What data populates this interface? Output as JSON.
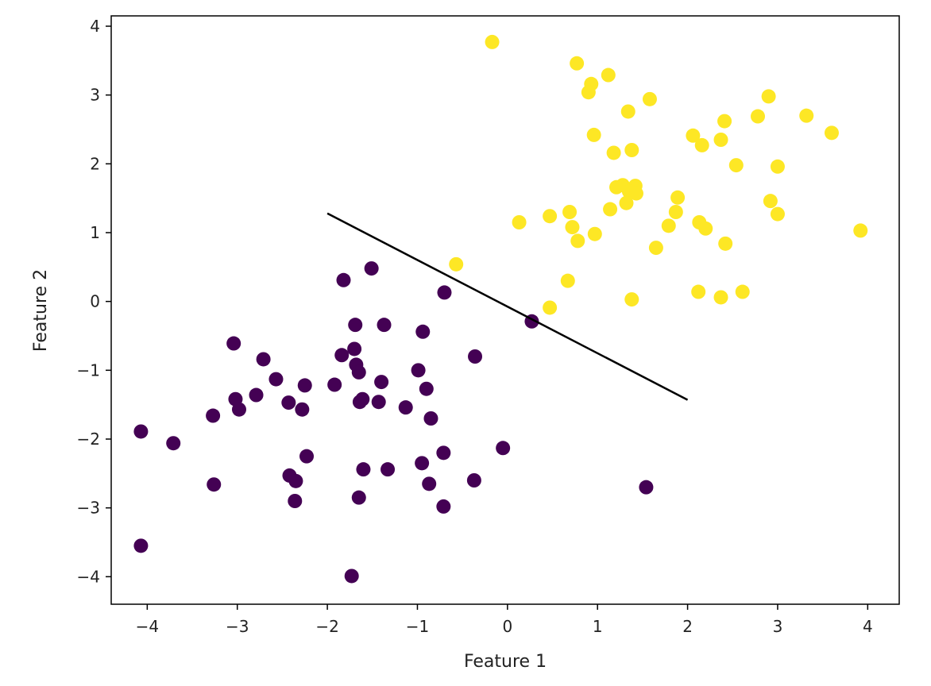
{
  "chart_data": {
    "type": "scatter",
    "title": "",
    "xlabel": "Feature 1",
    "ylabel": "Feature 2",
    "xlim": [
      -4.4,
      4.35
    ],
    "ylim": [
      -4.4,
      4.15
    ],
    "xticks": [
      -4,
      -3,
      -2,
      -1,
      0,
      1,
      2,
      3,
      4
    ],
    "yticks": [
      -4,
      -3,
      -2,
      -1,
      0,
      1,
      2,
      3,
      4
    ],
    "xtick_labels": [
      "−4",
      "−3",
      "−2",
      "−1",
      "0",
      "1",
      "2",
      "3",
      "4"
    ],
    "ytick_labels": [
      "−4",
      "−3",
      "−2",
      "−1",
      "0",
      "1",
      "2",
      "3",
      "4"
    ],
    "grid": false,
    "decision_boundary": {
      "x": [
        -2.0,
        2.0
      ],
      "y": [
        1.28,
        -1.43
      ],
      "color": "#000000"
    },
    "series": [
      {
        "color": "#440154",
        "points": [
          [
            -1.51,
            0.48
          ],
          [
            -1.82,
            0.31
          ],
          [
            -0.7,
            0.13
          ],
          [
            0.27,
            -0.29
          ],
          [
            -1.69,
            -0.34
          ],
          [
            -1.37,
            -0.34
          ],
          [
            -0.94,
            -0.44
          ],
          [
            -3.04,
            -0.61
          ],
          [
            -1.7,
            -0.69
          ],
          [
            -1.84,
            -0.78
          ],
          [
            -0.36,
            -0.8
          ],
          [
            -2.71,
            -0.84
          ],
          [
            -1.68,
            -0.92
          ],
          [
            -1.65,
            -1.03
          ],
          [
            -0.99,
            -1.0
          ],
          [
            -2.57,
            -1.13
          ],
          [
            -1.4,
            -1.17
          ],
          [
            -1.92,
            -1.21
          ],
          [
            -2.25,
            -1.22
          ],
          [
            -0.9,
            -1.27
          ],
          [
            -2.79,
            -1.36
          ],
          [
            -3.02,
            -1.42
          ],
          [
            -1.61,
            -1.42
          ],
          [
            -1.64,
            -1.46
          ],
          [
            -1.43,
            -1.46
          ],
          [
            -2.43,
            -1.47
          ],
          [
            -2.98,
            -1.57
          ],
          [
            -2.28,
            -1.57
          ],
          [
            -1.13,
            -1.54
          ],
          [
            -3.27,
            -1.66
          ],
          [
            -0.85,
            -1.7
          ],
          [
            -4.07,
            -1.89
          ],
          [
            -3.71,
            -2.06
          ],
          [
            -0.05,
            -2.13
          ],
          [
            -0.71,
            -2.2
          ],
          [
            -2.23,
            -2.25
          ],
          [
            -0.95,
            -2.35
          ],
          [
            -1.6,
            -2.44
          ],
          [
            -1.33,
            -2.44
          ],
          [
            -2.42,
            -2.53
          ],
          [
            -2.35,
            -2.61
          ],
          [
            -3.26,
            -2.66
          ],
          [
            -0.87,
            -2.65
          ],
          [
            -0.37,
            -2.6
          ],
          [
            1.54,
            -2.7
          ],
          [
            -1.65,
            -2.85
          ],
          [
            -2.36,
            -2.9
          ],
          [
            -0.71,
            -2.98
          ],
          [
            -4.07,
            -3.55
          ],
          [
            -1.73,
            -3.99
          ]
        ]
      },
      {
        "color": "#fde725",
        "points": [
          [
            -0.17,
            3.77
          ],
          [
            0.77,
            3.46
          ],
          [
            1.12,
            3.29
          ],
          [
            0.93,
            3.16
          ],
          [
            0.9,
            3.04
          ],
          [
            1.58,
            2.94
          ],
          [
            2.9,
            2.98
          ],
          [
            1.34,
            2.76
          ],
          [
            2.78,
            2.69
          ],
          [
            3.32,
            2.7
          ],
          [
            2.41,
            2.62
          ],
          [
            0.96,
            2.42
          ],
          [
            2.06,
            2.41
          ],
          [
            3.6,
            2.45
          ],
          [
            2.37,
            2.35
          ],
          [
            2.16,
            2.27
          ],
          [
            1.38,
            2.2
          ],
          [
            1.18,
            2.16
          ],
          [
            2.54,
            1.98
          ],
          [
            3.0,
            1.96
          ],
          [
            1.21,
            1.66
          ],
          [
            1.28,
            1.69
          ],
          [
            1.42,
            1.68
          ],
          [
            1.35,
            1.6
          ],
          [
            1.43,
            1.57
          ],
          [
            1.89,
            1.51
          ],
          [
            1.32,
            1.43
          ],
          [
            2.92,
            1.46
          ],
          [
            0.69,
            1.3
          ],
          [
            0.47,
            1.24
          ],
          [
            1.14,
            1.34
          ],
          [
            1.87,
            1.3
          ],
          [
            3.0,
            1.27
          ],
          [
            0.13,
            1.15
          ],
          [
            0.72,
            1.08
          ],
          [
            2.13,
            1.15
          ],
          [
            1.79,
            1.1
          ],
          [
            2.2,
            1.06
          ],
          [
            0.97,
            0.98
          ],
          [
            3.92,
            1.03
          ],
          [
            0.78,
            0.88
          ],
          [
            2.42,
            0.84
          ],
          [
            1.65,
            0.78
          ],
          [
            -0.57,
            0.54
          ],
          [
            0.67,
            0.3
          ],
          [
            2.12,
            0.14
          ],
          [
            2.61,
            0.14
          ],
          [
            2.37,
            0.06
          ],
          [
            1.38,
            0.03
          ],
          [
            0.47,
            -0.09
          ]
        ]
      }
    ]
  }
}
